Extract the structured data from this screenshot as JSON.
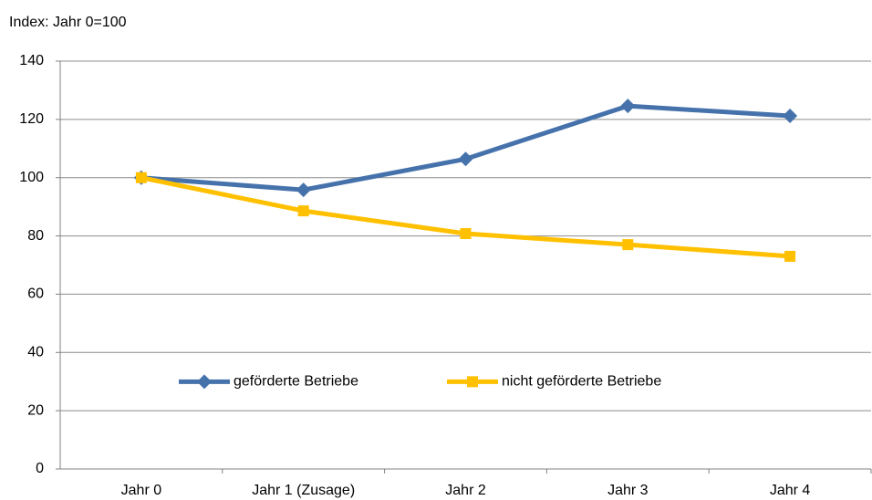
{
  "chart_data": {
    "type": "line",
    "y_axis_label": "Index: Jahr 0=100",
    "categories": [
      "Jahr 0",
      "Jahr 1 (Zusage)",
      "Jahr 2",
      "Jahr 3",
      "Jahr 4"
    ],
    "series": [
      {
        "name": "geförderte Betriebe",
        "color": "#4672ac",
        "marker": "diamond",
        "values": [
          100,
          95.8,
          106.4,
          124.6,
          121.2
        ]
      },
      {
        "name": "nicht geförderte Betriebe",
        "color": "#ffc000",
        "marker": "square",
        "values": [
          100,
          88.6,
          80.8,
          77,
          73
        ]
      }
    ],
    "ylim": [
      0,
      140
    ],
    "yticks": [
      0,
      20,
      40,
      60,
      80,
      100,
      120,
      140
    ],
    "grid": true,
    "legend": "center"
  }
}
